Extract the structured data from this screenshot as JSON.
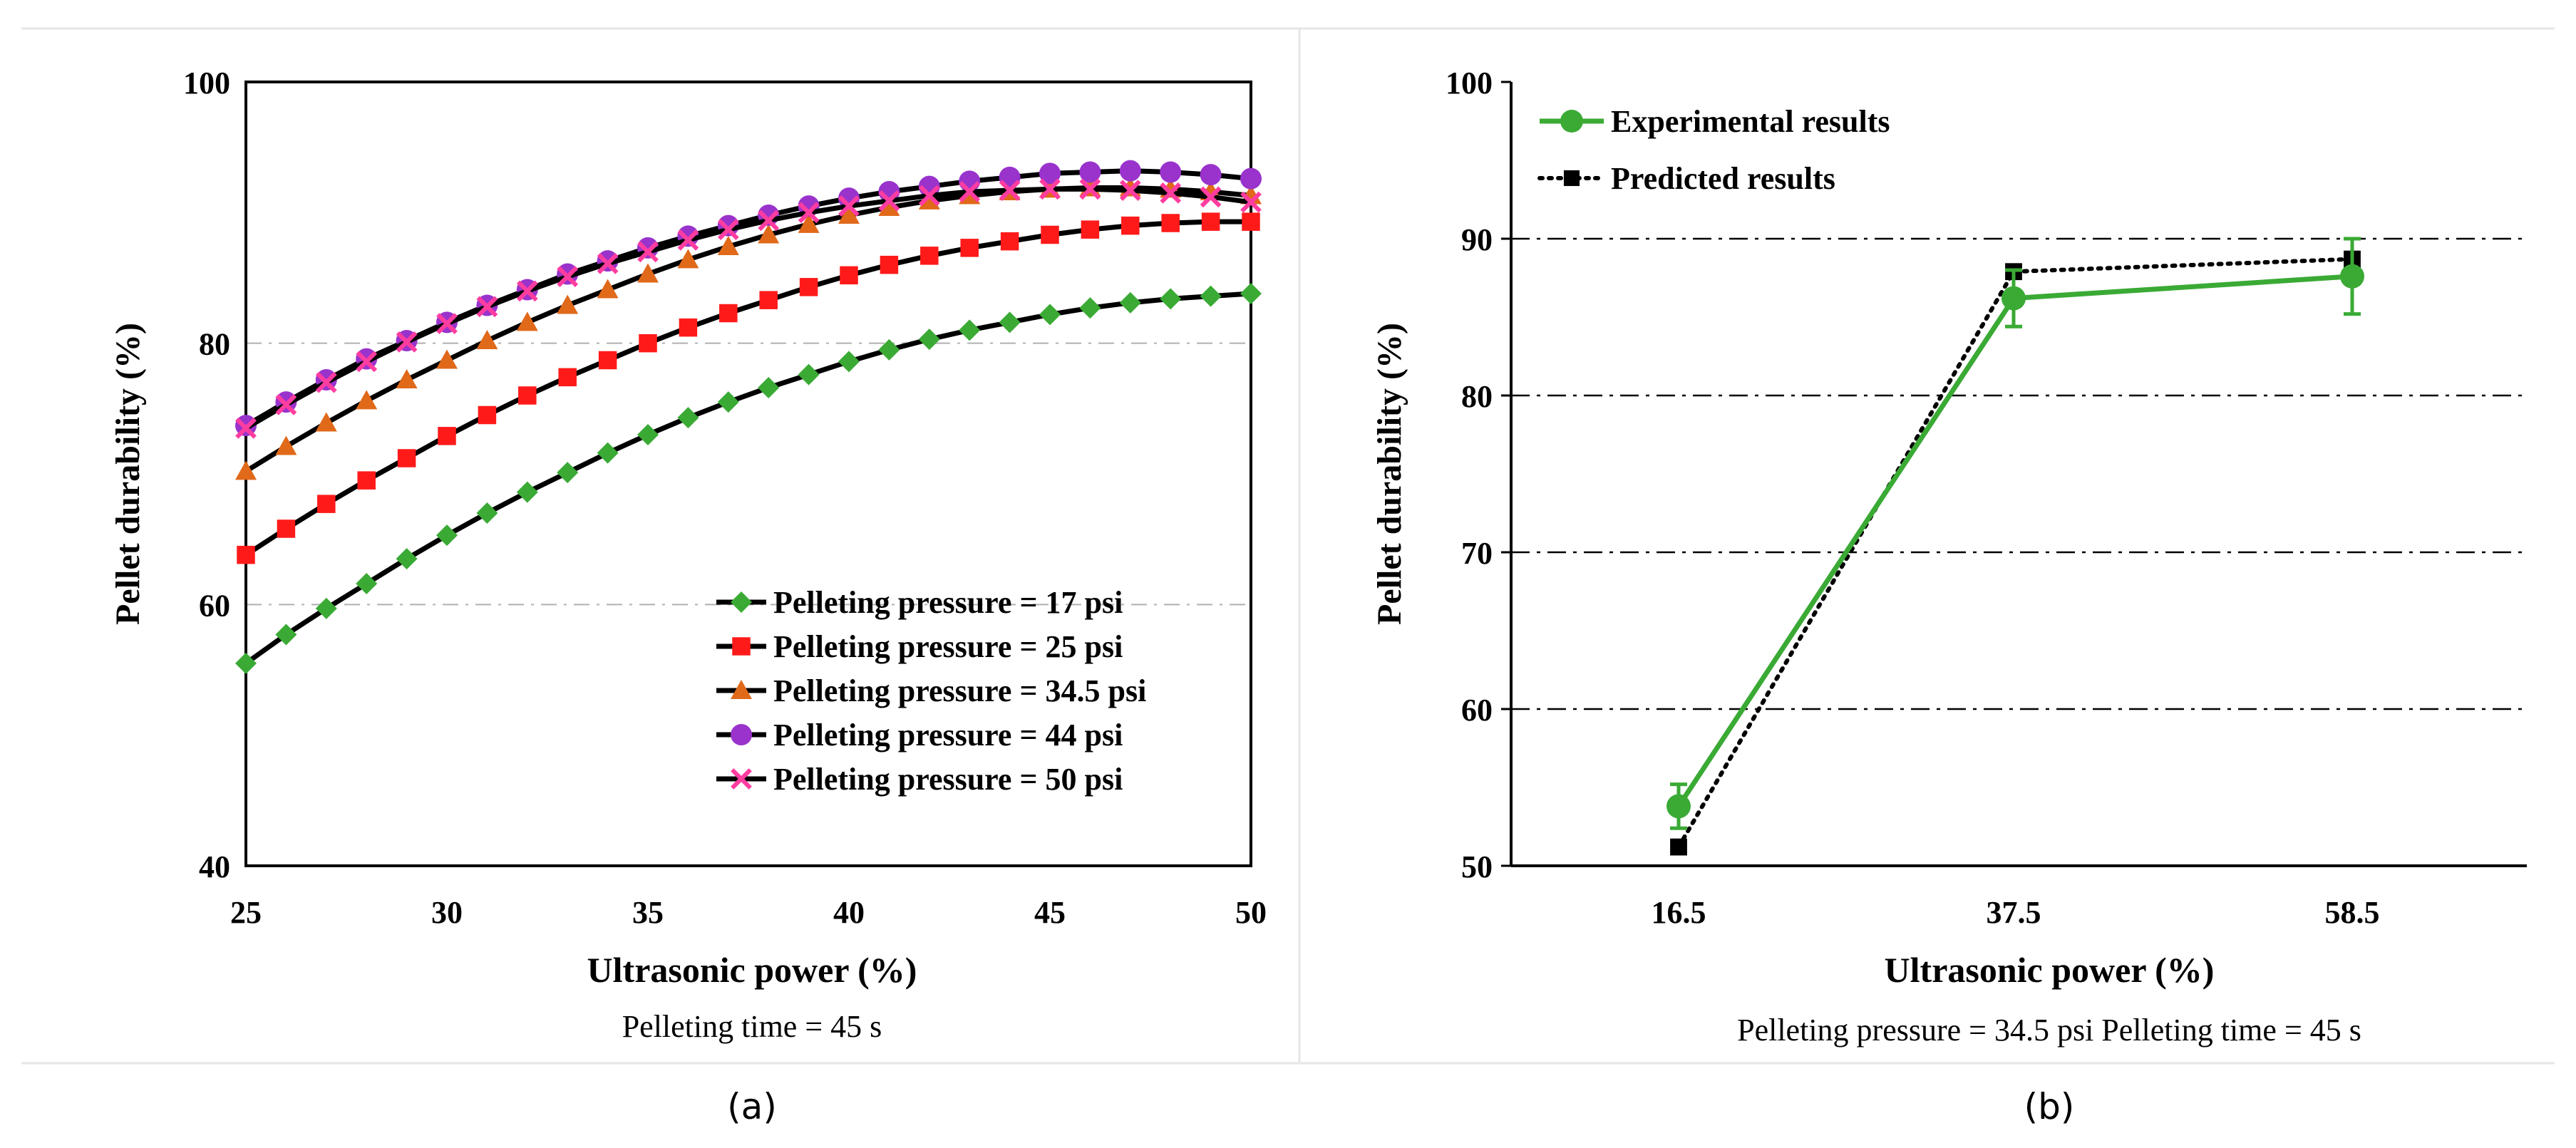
{
  "colors": {
    "c17": "#3aaa35",
    "c25": "#ff1a1a",
    "c345": "#e0691a",
    "c44": "#9933cc",
    "c50": "#ff3ca0",
    "curve_line": "#000000",
    "experimental": "#3aaa35",
    "predicted": "#000000",
    "gridA": "#b0b0b0",
    "gridB": "#000000"
  },
  "chart_data": [
    {
      "panel": "(a)",
      "type": "line",
      "title": "",
      "xlabel": "Ultrasonic power (%)",
      "ylabel": "Pellet durability (%)",
      "caption": "Pelleting time = 45 s",
      "xlim": [
        25,
        50
      ],
      "ylim": [
        40,
        100
      ],
      "xticks": [
        "25",
        "30",
        "35",
        "40",
        "45",
        "50"
      ],
      "yticks": [
        "40",
        "60",
        "80",
        "100"
      ],
      "grid": "horizontal",
      "legend_position": "bottom-right",
      "x": [
        25,
        26,
        27,
        28,
        29,
        30,
        31,
        32,
        33,
        34,
        35,
        36,
        37,
        38,
        39,
        40,
        41,
        42,
        43,
        44,
        45,
        46,
        47,
        48,
        49,
        50
      ],
      "series": [
        {
          "name": "Pelleting pressure = 17 psi",
          "marker": "diamond",
          "color": "#3aaa35",
          "values": [
            55.5,
            57.7,
            59.7,
            61.6,
            63.5,
            65.3,
            67.0,
            68.6,
            70.1,
            71.6,
            73.0,
            74.3,
            75.5,
            76.6,
            77.6,
            78.6,
            79.5,
            80.3,
            81.0,
            81.6,
            82.2,
            82.7,
            83.1,
            83.4,
            83.6,
            83.8
          ]
        },
        {
          "name": "Pelleting pressure = 25 psi",
          "marker": "square",
          "color": "#ff1a1a",
          "values": [
            63.8,
            65.8,
            67.7,
            69.5,
            71.2,
            72.9,
            74.5,
            76.0,
            77.4,
            78.7,
            80.0,
            81.2,
            82.3,
            83.3,
            84.3,
            85.2,
            86.0,
            86.7,
            87.3,
            87.8,
            88.3,
            88.7,
            89.0,
            89.2,
            89.3,
            89.3
          ]
        },
        {
          "name": "Pelleting pressure = 34.5 psi",
          "marker": "triangle",
          "color": "#e0691a",
          "values": [
            70.2,
            72.1,
            73.9,
            75.6,
            77.2,
            78.7,
            80.2,
            81.6,
            82.9,
            84.1,
            85.3,
            86.4,
            87.4,
            88.3,
            89.1,
            89.8,
            90.4,
            90.9,
            91.3,
            91.6,
            91.8,
            91.9,
            91.9,
            91.8,
            91.6,
            91.3
          ]
        },
        {
          "name": "Pelleting pressure = 44 psi",
          "marker": "circle",
          "color": "#9933cc",
          "values": [
            73.7,
            75.5,
            77.2,
            78.8,
            80.2,
            81.6,
            82.9,
            84.1,
            85.3,
            86.3,
            87.3,
            88.2,
            89.0,
            89.8,
            90.5,
            91.1,
            91.6,
            92.0,
            92.4,
            92.7,
            93.0,
            93.1,
            93.2,
            93.1,
            92.9,
            92.6
          ]
        },
        {
          "name": "Pelleting pressure = 50 psi",
          "marker": "x",
          "color": "#ff3ca0",
          "values": [
            73.5,
            75.3,
            77.0,
            78.6,
            80.1,
            81.5,
            82.8,
            84.0,
            85.1,
            86.1,
            87.0,
            87.9,
            88.7,
            89.4,
            90.0,
            90.5,
            90.9,
            91.3,
            91.6,
            91.7,
            91.8,
            91.8,
            91.7,
            91.5,
            91.2,
            90.8
          ]
        }
      ]
    },
    {
      "panel": "(b)",
      "type": "line",
      "title": "",
      "xlabel": "Ultrasonic power (%)",
      "ylabel": "Pellet durability (%)",
      "caption": "Pelleting pressure = 34.5 psi  Pelleting time = 45 s",
      "categories": [
        "16.5",
        "37.5",
        "58.5"
      ],
      "ylim": [
        50,
        100
      ],
      "yticks": [
        "50",
        "60",
        "70",
        "80",
        "90",
        "100"
      ],
      "grid": "horizontal",
      "legend_position": "top-left",
      "series": [
        {
          "name": "Experimental results",
          "marker": "circle",
          "color": "#3aaa35",
          "values": [
            53.8,
            86.2,
            87.6
          ],
          "error": [
            1.4,
            1.8,
            2.4
          ]
        },
        {
          "name": "Predicted results",
          "marker": "square",
          "color": "#000000",
          "linestyle": "dotted",
          "values": [
            51.2,
            87.9,
            88.7
          ]
        }
      ]
    }
  ],
  "panel_labels": [
    "(a)",
    "(b)"
  ]
}
